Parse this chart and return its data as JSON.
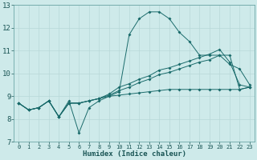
{
  "xlabel": "Humidex (Indice chaleur)",
  "bg_color": "#ceeaea",
  "grid_color": "#b8d8d8",
  "line_color": "#1a6b6b",
  "xlim": [
    -0.5,
    23.5
  ],
  "ylim": [
    7,
    13
  ],
  "xticks": [
    0,
    1,
    2,
    3,
    4,
    5,
    6,
    7,
    8,
    9,
    10,
    11,
    12,
    13,
    14,
    15,
    16,
    17,
    18,
    19,
    20,
    21,
    22,
    23
  ],
  "yticks": [
    7,
    8,
    9,
    10,
    11,
    12,
    13
  ],
  "series1": [
    8.7,
    8.4,
    8.5,
    8.8,
    8.1,
    8.8,
    7.4,
    8.5,
    8.8,
    9.0,
    9.2,
    11.7,
    12.4,
    12.7,
    12.7,
    12.4,
    11.8,
    11.4,
    10.8,
    10.8,
    10.8,
    10.4,
    10.2,
    9.5
  ],
  "series2": [
    8.7,
    8.4,
    8.5,
    8.8,
    8.1,
    8.7,
    8.7,
    8.8,
    8.9,
    9.1,
    9.4,
    9.55,
    9.75,
    9.9,
    10.15,
    10.25,
    10.4,
    10.55,
    10.7,
    10.85,
    11.05,
    10.5,
    9.5,
    9.4
  ],
  "series3": [
    8.7,
    8.4,
    8.5,
    8.8,
    8.1,
    8.7,
    8.7,
    8.8,
    8.9,
    9.05,
    9.25,
    9.4,
    9.6,
    9.75,
    9.95,
    10.05,
    10.2,
    10.35,
    10.5,
    10.6,
    10.8,
    10.8,
    9.3,
    9.4
  ],
  "series4": [
    8.7,
    8.4,
    8.5,
    8.8,
    8.1,
    8.7,
    8.7,
    8.8,
    8.9,
    9.0,
    9.05,
    9.1,
    9.15,
    9.2,
    9.25,
    9.3,
    9.3,
    9.3,
    9.3,
    9.3,
    9.3,
    9.3,
    9.3,
    9.4
  ]
}
